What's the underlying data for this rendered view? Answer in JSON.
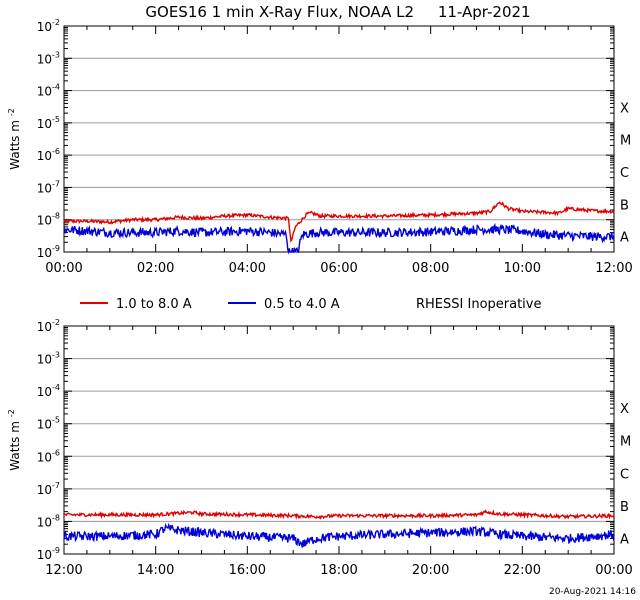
{
  "title": "GOES16 1 min X-Ray Flux, NOAA L2     11-Apr-2021",
  "timestamp": "20-Aug-2021 14:16",
  "legend": {
    "long_label": "1.0 to 8.0 A",
    "short_label": "0.5 to 4.0 A",
    "note": "RHESSI Inoperative"
  },
  "colors": {
    "long": "#e00000",
    "short": "#0000d8",
    "grid": "#000000"
  },
  "chart_data": [
    {
      "type": "line",
      "panel": "top",
      "ylabel_base": "Watts m",
      "ylabel_exp": "-2",
      "yscale": "log",
      "ylim": [
        1e-09,
        0.01
      ],
      "y_ticks": [
        {
          "base": "10",
          "exp": "-9",
          "value": 1e-09
        },
        {
          "base": "10",
          "exp": "-8",
          "value": 1e-08
        },
        {
          "base": "10",
          "exp": "-7",
          "value": 1e-07
        },
        {
          "base": "10",
          "exp": "-6",
          "value": 1e-06
        },
        {
          "base": "10",
          "exp": "-5",
          "value": 1e-05
        },
        {
          "base": "10",
          "exp": "-4",
          "value": 0.0001
        },
        {
          "base": "10",
          "exp": "-3",
          "value": 0.001
        },
        {
          "base": "10",
          "exp": "-2",
          "value": 0.01
        }
      ],
      "flare_classes": [
        {
          "label": "A",
          "value": 3e-09
        },
        {
          "label": "B",
          "value": 3e-08
        },
        {
          "label": "C",
          "value": 3e-07
        },
        {
          "label": "M",
          "value": 3e-06
        },
        {
          "label": "X",
          "value": 3e-05
        }
      ],
      "x_ticks": [
        "00:00",
        "02:00",
        "04:00",
        "06:00",
        "08:00",
        "10:00",
        "12:00"
      ],
      "x_range_hours": [
        0,
        12
      ],
      "series": [
        {
          "key": "long",
          "x": [
            0,
            0.5,
            1,
            1.5,
            2,
            2.5,
            3,
            3.5,
            4,
            4.5,
            4.9,
            4.95,
            5.05,
            5.3,
            5.4,
            5.6,
            6,
            6.5,
            7,
            7.5,
            8,
            8.5,
            9,
            9.3,
            9.5,
            9.7,
            10,
            10.5,
            10.8,
            11,
            11.5,
            12
          ],
          "y": [
            9e-09,
            9e-09,
            8.5e-09,
            1e-08,
            1e-08,
            1.2e-08,
            1.1e-08,
            1.3e-08,
            1.4e-08,
            1.2e-08,
            1.1e-08,
            2e-09,
            6e-09,
            1.5e-08,
            1.6e-08,
            1.3e-08,
            1.3e-08,
            1.3e-08,
            1.3e-08,
            1.35e-08,
            1.4e-08,
            1.5e-08,
            1.6e-08,
            1.8e-08,
            3.5e-08,
            2.2e-08,
            1.8e-08,
            1.7e-08,
            1.6e-08,
            2.2e-08,
            1.9e-08,
            1.8e-08
          ]
        },
        {
          "key": "short",
          "x": [
            0,
            0.5,
            1,
            1.5,
            2,
            2.5,
            3,
            3.5,
            4,
            4.5,
            4.85,
            4.9,
            5.1,
            5.2,
            5.5,
            6,
            7,
            8,
            8.5,
            9,
            9.5,
            10,
            10.5,
            11,
            11.5,
            12
          ],
          "y": [
            5e-09,
            4.5e-09,
            4e-09,
            4e-09,
            4e-09,
            4.5e-09,
            4e-09,
            4.2e-09,
            4.5e-09,
            4e-09,
            3.5e-09,
            1e-09,
            1e-09,
            3.5e-09,
            4e-09,
            4e-09,
            4e-09,
            4.2e-09,
            4.5e-09,
            5e-09,
            5e-09,
            4.5e-09,
            3.5e-09,
            3.2e-09,
            3e-09,
            3e-09
          ]
        }
      ]
    },
    {
      "type": "line",
      "panel": "bottom",
      "ylabel_base": "Watts m",
      "ylabel_exp": "-2",
      "yscale": "log",
      "ylim": [
        1e-09,
        0.01
      ],
      "y_ticks": [
        {
          "base": "10",
          "exp": "-9",
          "value": 1e-09
        },
        {
          "base": "10",
          "exp": "-8",
          "value": 1e-08
        },
        {
          "base": "10",
          "exp": "-7",
          "value": 1e-07
        },
        {
          "base": "10",
          "exp": "-6",
          "value": 1e-06
        },
        {
          "base": "10",
          "exp": "-5",
          "value": 1e-05
        },
        {
          "base": "10",
          "exp": "-4",
          "value": 0.0001
        },
        {
          "base": "10",
          "exp": "-3",
          "value": 0.001
        },
        {
          "base": "10",
          "exp": "-2",
          "value": 0.01
        }
      ],
      "flare_classes": [
        {
          "label": "A",
          "value": 3e-09
        },
        {
          "label": "B",
          "value": 3e-08
        },
        {
          "label": "C",
          "value": 3e-07
        },
        {
          "label": "M",
          "value": 3e-06
        },
        {
          "label": "X",
          "value": 3e-05
        }
      ],
      "x_ticks": [
        "12:00",
        "14:00",
        "16:00",
        "18:00",
        "20:00",
        "22:00",
        "00:00"
      ],
      "x_range_hours": [
        12,
        24
      ],
      "series": [
        {
          "key": "long",
          "x": [
            12,
            13,
            14,
            14.8,
            15,
            16,
            17,
            17.5,
            18,
            19,
            20,
            21,
            21.2,
            21.5,
            22,
            23,
            24
          ],
          "y": [
            1.6e-08,
            1.6e-08,
            1.6e-08,
            1.9e-08,
            1.7e-08,
            1.6e-08,
            1.5e-08,
            1.4e-08,
            1.5e-08,
            1.5e-08,
            1.5e-08,
            1.6e-08,
            2e-08,
            1.7e-08,
            1.6e-08,
            1.4e-08,
            1.5e-08
          ]
        },
        {
          "key": "short",
          "x": [
            12,
            13,
            14,
            14.2,
            15,
            16,
            17,
            17.2,
            17.5,
            18,
            19,
            20,
            21,
            21.5,
            22,
            23,
            24
          ],
          "y": [
            3.5e-09,
            3.5e-09,
            4e-09,
            6e-09,
            4.5e-09,
            3.5e-09,
            3e-09,
            2e-09,
            3e-09,
            3.5e-09,
            4e-09,
            4.5e-09,
            5e-09,
            4e-09,
            3.5e-09,
            3e-09,
            4e-09
          ]
        }
      ]
    }
  ]
}
